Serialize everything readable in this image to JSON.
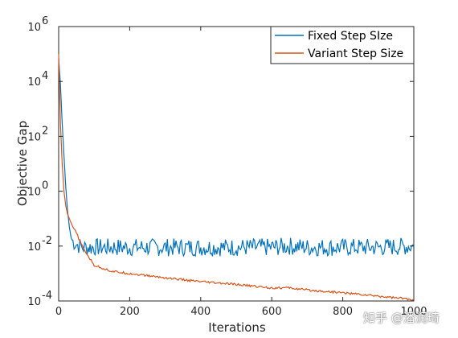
{
  "chart_data": {
    "type": "line",
    "title": "",
    "xlabel": "Iterations",
    "ylabel": "Objective Gap",
    "xlim": [
      0,
      1000
    ],
    "ylim": [
      0.0001,
      1000000
    ],
    "yscale": "log",
    "grid": false,
    "legend_position": "top-right",
    "x_ticks": [
      "0",
      "200",
      "400",
      "600",
      "800",
      "1000"
    ],
    "y_ticks": [
      {
        "base": "10",
        "exp": "-4"
      },
      {
        "base": "10",
        "exp": "-2"
      },
      {
        "base": "10",
        "exp": "0"
      },
      {
        "base": "10",
        "exp": "2"
      },
      {
        "base": "10",
        "exp": "4"
      },
      {
        "base": "10",
        "exp": "6"
      }
    ],
    "series": [
      {
        "name": "Fixed Step SIze",
        "color": "#0072BD",
        "x": [
          0,
          5,
          10,
          15,
          20,
          25,
          30,
          35,
          40,
          50,
          60,
          70,
          80,
          100,
          150,
          200,
          300,
          400,
          500,
          600,
          650,
          700,
          800,
          900,
          1000
        ],
        "y": [
          70000,
          8000,
          300,
          20,
          1.5,
          0.2,
          0.05,
          0.02,
          0.015,
          0.012,
          0.01,
          0.009,
          0.009,
          0.009,
          0.009,
          0.009,
          0.009,
          0.009,
          0.009,
          0.009,
          0.01,
          0.009,
          0.009,
          0.009,
          0.01
        ]
      },
      {
        "name": "Variant Step Size",
        "color": "#D95319",
        "x": [
          0,
          5,
          10,
          15,
          20,
          25,
          30,
          35,
          40,
          50,
          60,
          70,
          80,
          100,
          150,
          200,
          300,
          400,
          500,
          600,
          650,
          700,
          800,
          900,
          980,
          1000
        ],
        "y": [
          100000,
          300,
          10,
          1,
          0.3,
          0.15,
          0.1,
          0.07,
          0.05,
          0.03,
          0.015,
          0.008,
          0.005,
          0.002,
          0.0012,
          0.001,
          0.0007,
          0.0005,
          0.0004,
          0.0003,
          0.0003,
          0.00025,
          0.0002,
          0.00015,
          0.00012,
          0.0001
        ]
      }
    ]
  },
  "watermark": "知乎 @潘润琦"
}
